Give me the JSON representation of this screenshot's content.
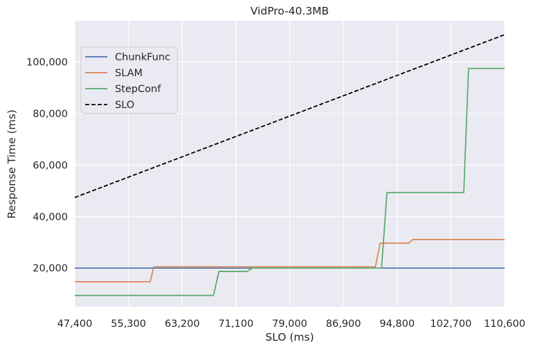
{
  "chart_data": {
    "type": "line",
    "title": "VidPro-40.3MB",
    "xlabel": "SLO (ms)",
    "ylabel": "Response Time (ms)",
    "xlim": [
      47400,
      110600
    ],
    "ylim": [
      5000,
      116000
    ],
    "x_ticks": [
      47400,
      55300,
      63200,
      71100,
      79000,
      86900,
      94800,
      102700,
      110600
    ],
    "x_tick_labels": [
      "47,400",
      "55,300",
      "63,200",
      "71,100",
      "79,000",
      "86,900",
      "94,800",
      "102,700",
      "110,600"
    ],
    "y_ticks": [
      20000,
      40000,
      60000,
      80000,
      100000
    ],
    "y_tick_labels": [
      "20,000",
      "40,000",
      "60,000",
      "80,000",
      "100,000"
    ],
    "grid": true,
    "legend_position": "upper-left",
    "series": [
      {
        "name": "ChunkFunc",
        "color": "#4c72b0",
        "dash": "solid",
        "points": [
          [
            47400,
            20000
          ],
          [
            110600,
            20000
          ]
        ]
      },
      {
        "name": "SLAM",
        "color": "#dd8452",
        "dash": "solid",
        "points": [
          [
            47400,
            14700
          ],
          [
            58500,
            14700
          ],
          [
            59000,
            20500
          ],
          [
            91600,
            20500
          ],
          [
            92300,
            29700
          ],
          [
            96500,
            29700
          ],
          [
            97100,
            31100
          ],
          [
            110600,
            31100
          ]
        ]
      },
      {
        "name": "StepConf",
        "color": "#55a868",
        "dash": "solid",
        "points": [
          [
            47400,
            9400
          ],
          [
            67800,
            9400
          ],
          [
            68600,
            18700
          ],
          [
            72700,
            18700
          ],
          [
            73500,
            20000
          ],
          [
            92500,
            20000
          ],
          [
            93300,
            49300
          ],
          [
            104600,
            49300
          ],
          [
            105300,
            97500
          ],
          [
            110600,
            97500
          ]
        ]
      },
      {
        "name": "SLO",
        "color": "#000000",
        "dash": "dashed",
        "points": [
          [
            47400,
            47400
          ],
          [
            110600,
            110600
          ]
        ]
      }
    ]
  }
}
